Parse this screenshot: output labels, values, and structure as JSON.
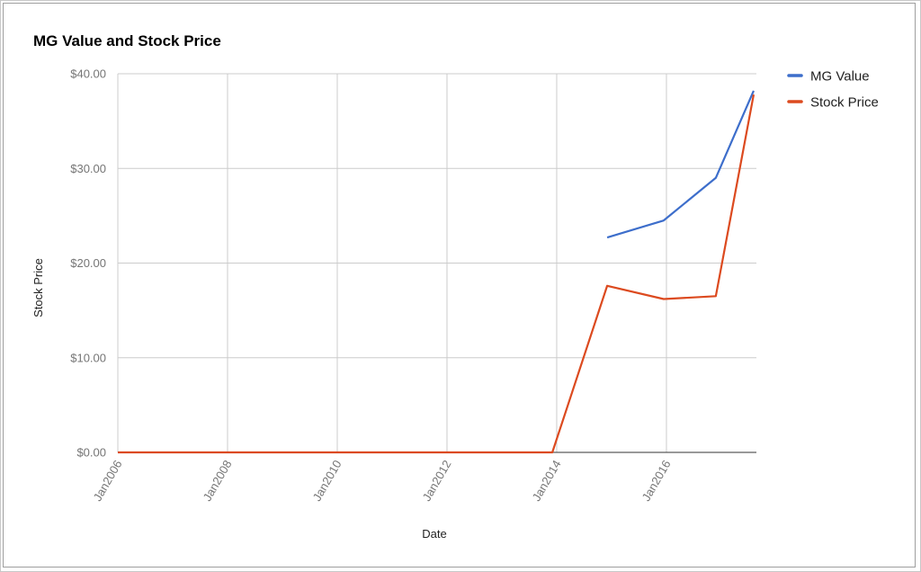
{
  "chart_data": {
    "type": "line",
    "title": "MG Value and Stock Price",
    "x_label": "Date",
    "y_label": "Stock Price",
    "x": [
      2006,
      2013.92,
      2014.92,
      2015.95,
      2016.9,
      2017.59
    ],
    "series": [
      {
        "name": "MG Value",
        "color": "#3d6ecb",
        "values": [
          null,
          null,
          22.7,
          24.5,
          29.0,
          38.2
        ]
      },
      {
        "name": "Stock Price",
        "color": "#dc4a1f",
        "values": [
          0,
          0,
          17.6,
          16.2,
          16.5,
          37.8
        ]
      }
    ],
    "xlim": [
      2006,
      2017.64
    ],
    "xticks": [
      {
        "value": 2006,
        "label": "Jan2006"
      },
      {
        "value": 2008,
        "label": "Jan2008"
      },
      {
        "value": 2010,
        "label": "Jan2010"
      },
      {
        "value": 2012,
        "label": "Jan2012"
      },
      {
        "value": 2014,
        "label": "Jan2014"
      },
      {
        "value": 2016,
        "label": "Jan2016"
      }
    ],
    "ylim": [
      0,
      40
    ],
    "yticks": [
      {
        "value": 0,
        "label": "$0.00"
      },
      {
        "value": 10,
        "label": "$10.00"
      },
      {
        "value": 20,
        "label": "$20.00"
      },
      {
        "value": 30,
        "label": "$30.00"
      },
      {
        "value": 40,
        "label": "$40.00"
      }
    ],
    "grid": true,
    "legend": "right"
  }
}
